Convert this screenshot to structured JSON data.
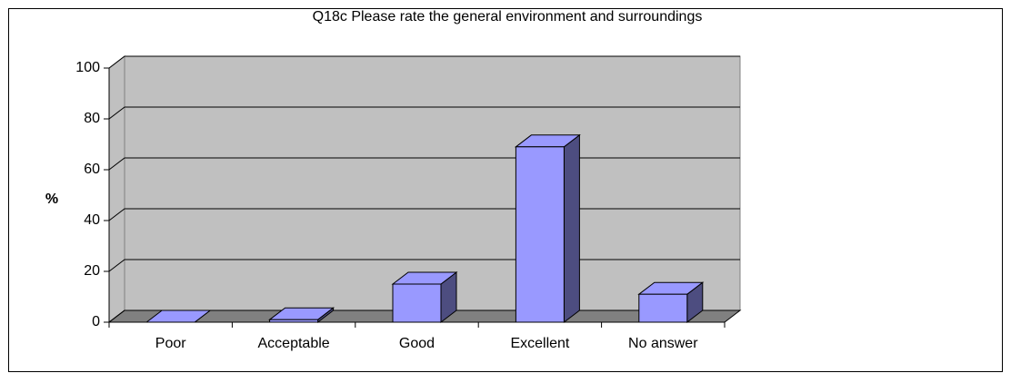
{
  "chart_data": {
    "type": "bar3d",
    "title": "Q18c Please rate the general environment and surroundings",
    "y_label": "%",
    "categories": [
      "Poor",
      "Acceptable",
      "Good",
      "Excellent",
      "No answer"
    ],
    "values": [
      0,
      1,
      15,
      69,
      11
    ],
    "color": "#9999ff",
    "ylim": [
      0,
      100
    ],
    "yticks": [
      0,
      20,
      40,
      60,
      80,
      100
    ],
    "grid": true
  }
}
